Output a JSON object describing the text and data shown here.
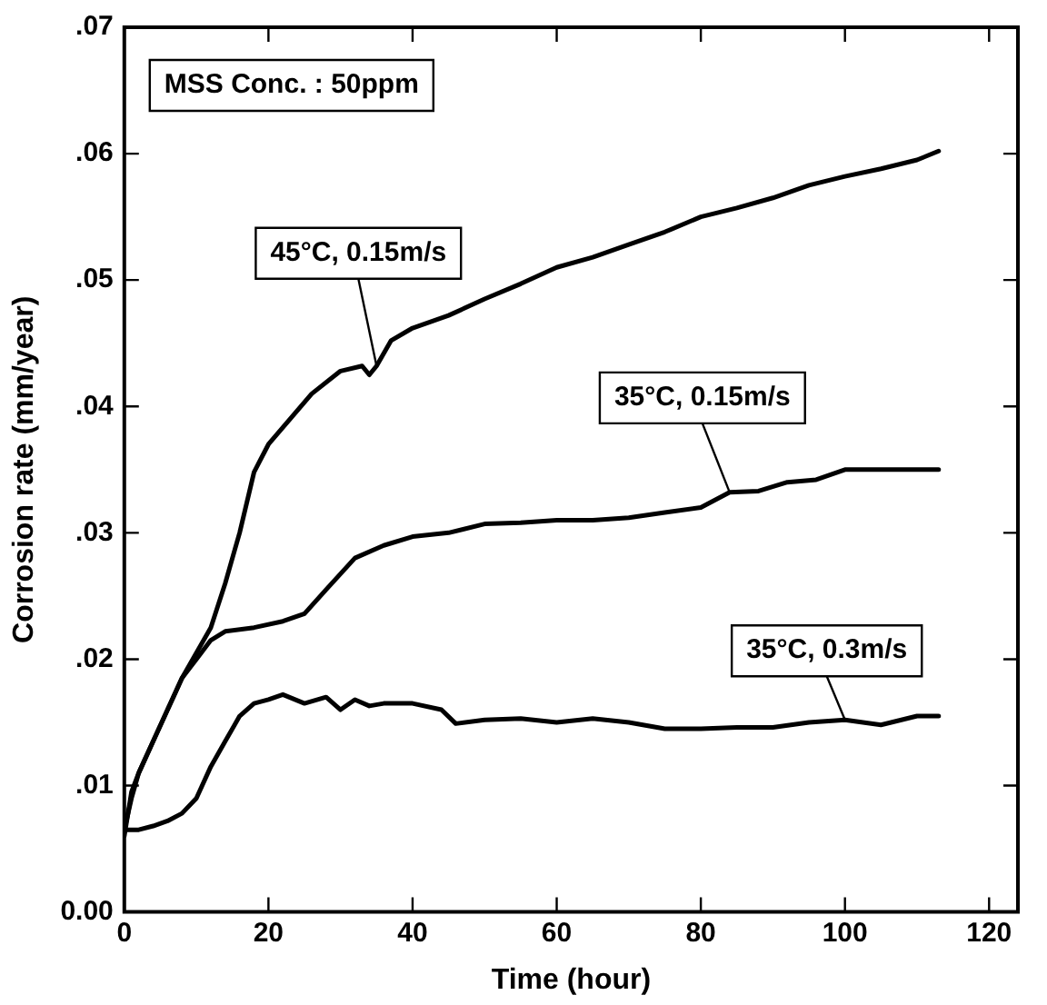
{
  "chart_data": {
    "type": "line",
    "xlabel": "Time (hour)",
    "ylabel": "Corrosion rate (mm/year)",
    "annotations": [
      "MSS Conc. : 50ppm"
    ],
    "xlim": [
      0,
      124
    ],
    "xticks": [
      0,
      20,
      40,
      60,
      80,
      100,
      120
    ],
    "ylim": [
      0,
      0.07
    ],
    "yticks": [
      {
        "value": 0,
        "label": "0.00"
      },
      {
        "value": 0.01,
        "label": ".01"
      },
      {
        "value": 0.02,
        "label": ".02"
      },
      {
        "value": 0.03,
        "label": ".03"
      },
      {
        "value": 0.04,
        "label": ".04"
      },
      {
        "value": 0.05,
        "label": ".05"
      },
      {
        "value": 0.06,
        "label": ".06"
      },
      {
        "value": 0.07,
        "label": ".07"
      }
    ],
    "grid": false,
    "legend": false,
    "marker": "none",
    "line_style": "solid",
    "series": [
      {
        "name": "45°C, 0.15m/s",
        "color": "#000000",
        "x": [
          0,
          1,
          2,
          4,
          6,
          8,
          10,
          12,
          14,
          16,
          18,
          20,
          23,
          26,
          30,
          33,
          34,
          35,
          37,
          40,
          45,
          50,
          55,
          60,
          65,
          70,
          75,
          80,
          85,
          90,
          95,
          100,
          105,
          110,
          113
        ],
        "values": [
          0.0065,
          0.009,
          0.011,
          0.0135,
          0.016,
          0.0185,
          0.0205,
          0.0225,
          0.026,
          0.03,
          0.0348,
          0.037,
          0.039,
          0.041,
          0.0428,
          0.0432,
          0.0425,
          0.0432,
          0.0452,
          0.0462,
          0.0472,
          0.0485,
          0.0497,
          0.051,
          0.0518,
          0.0528,
          0.0538,
          0.055,
          0.0557,
          0.0565,
          0.0575,
          0.0582,
          0.0588,
          0.0595,
          0.0602
        ]
      },
      {
        "name": "35°C, 0.15m/s",
        "color": "#000000",
        "x": [
          0,
          1,
          2,
          4,
          6,
          8,
          10,
          12,
          14,
          18,
          22,
          25,
          28,
          32,
          36,
          40,
          45,
          50,
          55,
          60,
          65,
          70,
          75,
          80,
          84,
          88,
          92,
          96,
          100,
          105,
          110,
          113
        ],
        "values": [
          0.006,
          0.0095,
          0.011,
          0.0135,
          0.016,
          0.0185,
          0.02,
          0.0215,
          0.0222,
          0.0225,
          0.023,
          0.0236,
          0.0255,
          0.028,
          0.029,
          0.0297,
          0.03,
          0.0307,
          0.0308,
          0.031,
          0.031,
          0.0312,
          0.0316,
          0.032,
          0.0332,
          0.0333,
          0.034,
          0.0342,
          0.035,
          0.035,
          0.035,
          0.035
        ]
      },
      {
        "name": "35°C, 0.3m/s",
        "color": "#000000",
        "x": [
          0,
          2,
          4,
          6,
          8,
          10,
          12,
          14,
          16,
          18,
          20,
          22,
          25,
          28,
          30,
          32,
          34,
          36,
          40,
          44,
          46,
          50,
          55,
          60,
          65,
          70,
          75,
          80,
          85,
          90,
          95,
          100,
          105,
          110,
          113
        ],
        "values": [
          0.0065,
          0.0065,
          0.0068,
          0.0072,
          0.0078,
          0.009,
          0.0115,
          0.0135,
          0.0155,
          0.0165,
          0.0168,
          0.0172,
          0.0165,
          0.017,
          0.016,
          0.0168,
          0.0163,
          0.0165,
          0.0165,
          0.016,
          0.0149,
          0.0152,
          0.0153,
          0.015,
          0.0153,
          0.015,
          0.0145,
          0.0145,
          0.0146,
          0.0146,
          0.015,
          0.0152,
          0.0148,
          0.0155,
          0.0155
        ]
      }
    ]
  }
}
